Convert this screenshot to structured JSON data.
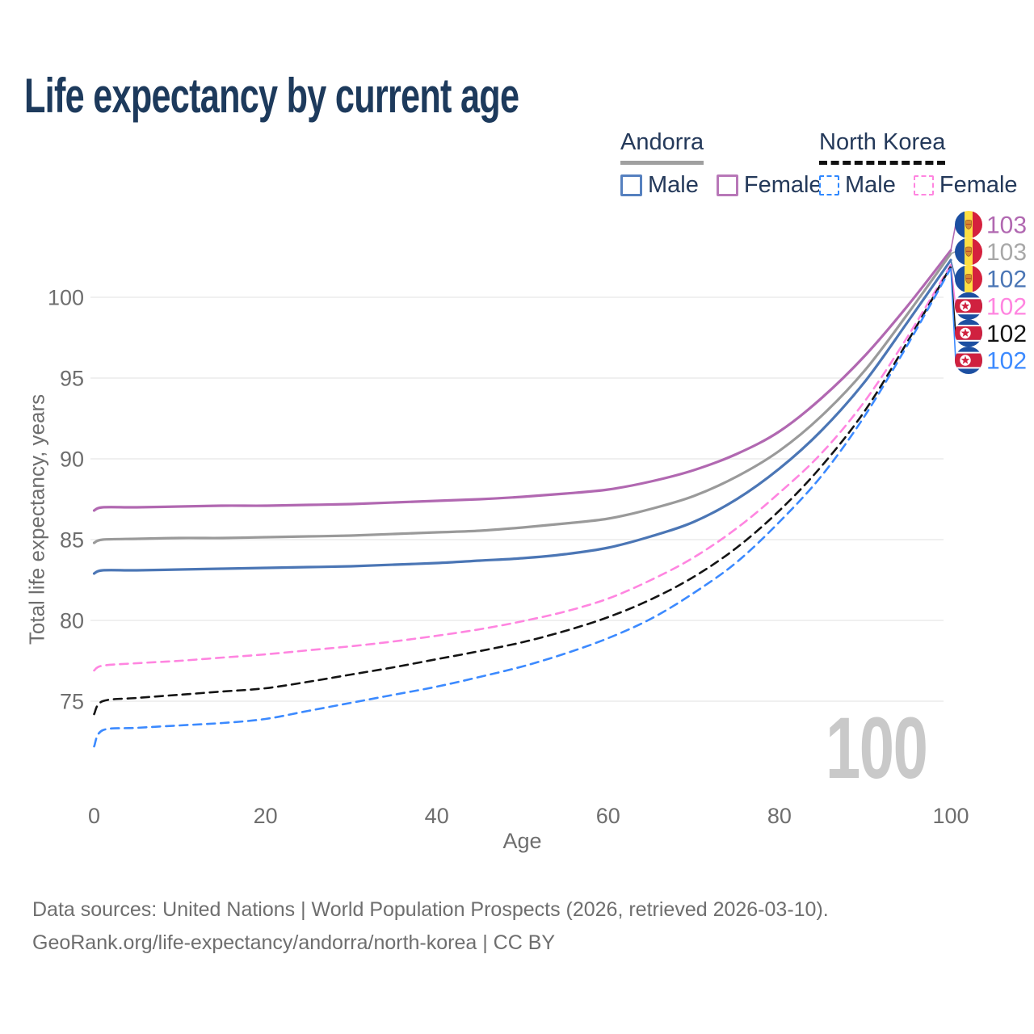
{
  "title": "Life expectancy by current age",
  "watermark": "100",
  "legend": {
    "groups": [
      {
        "label": "Andorra",
        "underline_color": "#a0a0a0",
        "underline_style": "solid",
        "items": [
          {
            "label": "Male",
            "color": "#5580bf",
            "dashed": false
          },
          {
            "label": "Female",
            "color": "#b878b8",
            "dashed": false
          }
        ]
      },
      {
        "label": "North Korea",
        "underline_color": "#111111",
        "underline_style": "dashed",
        "items": [
          {
            "label": "Male",
            "color": "#2f88ff",
            "dashed": true
          },
          {
            "label": "Female",
            "color": "#ff85e0",
            "dashed": true
          }
        ]
      }
    ]
  },
  "chart_data": {
    "type": "line",
    "title": "Life expectancy by current age",
    "xlabel": "Age",
    "ylabel": "Total life expectancy, years",
    "xlim": [
      0,
      100
    ],
    "ylim": [
      71.5,
      103.5
    ],
    "x_ticks": [
      0,
      20,
      40,
      60,
      80,
      100
    ],
    "y_ticks": [
      75,
      80,
      85,
      90,
      95,
      100
    ],
    "grid": "horizontal",
    "legend_position": "top-right",
    "x": [
      0,
      1,
      5,
      10,
      15,
      20,
      25,
      30,
      35,
      40,
      45,
      50,
      55,
      60,
      65,
      70,
      75,
      80,
      85,
      90,
      95,
      100
    ],
    "series": [
      {
        "name": "Andorra Female",
        "country": "Andorra",
        "sex": "Female",
        "color": "#b168b1",
        "dashed": false,
        "flag": "andorra",
        "end_label": "103",
        "end_label_color": "#b168b1",
        "values": [
          86.8,
          87.0,
          87.0,
          87.05,
          87.1,
          87.1,
          87.15,
          87.2,
          87.3,
          87.4,
          87.5,
          87.65,
          87.85,
          88.1,
          88.6,
          89.3,
          90.3,
          91.7,
          93.8,
          96.4,
          99.5,
          102.9
        ]
      },
      {
        "name": "Andorra Both sexes",
        "country": "Andorra",
        "sex": "Both",
        "color": "#9a9a9a",
        "dashed": false,
        "flag": "andorra",
        "end_label": "103",
        "end_label_color": "#a8a8a8",
        "values": [
          84.8,
          85.0,
          85.05,
          85.1,
          85.1,
          85.15,
          85.2,
          85.25,
          85.35,
          85.45,
          85.55,
          85.75,
          86.0,
          86.3,
          86.9,
          87.7,
          88.9,
          90.5,
          92.7,
          95.5,
          99.0,
          102.7
        ]
      },
      {
        "name": "Andorra Male",
        "country": "Andorra",
        "sex": "Male",
        "color": "#4b76b5",
        "dashed": false,
        "flag": "andorra",
        "end_label": "102",
        "end_label_color": "#4b76b5",
        "values": [
          82.9,
          83.1,
          83.1,
          83.15,
          83.2,
          83.25,
          83.3,
          83.35,
          83.45,
          83.55,
          83.7,
          83.85,
          84.1,
          84.5,
          85.2,
          86.1,
          87.5,
          89.4,
          91.8,
          94.8,
          98.5,
          102.3
        ]
      },
      {
        "name": "North Korea Female",
        "country": "North Korea",
        "sex": "Female",
        "color": "#ff85e0",
        "dashed": true,
        "flag": "north-korea",
        "end_label": "102",
        "end_label_color": "#ff85e0",
        "values": [
          76.9,
          77.2,
          77.35,
          77.5,
          77.7,
          77.9,
          78.15,
          78.4,
          78.7,
          79.05,
          79.45,
          79.95,
          80.55,
          81.35,
          82.5,
          83.9,
          85.7,
          87.9,
          90.4,
          93.6,
          97.6,
          102.0
        ]
      },
      {
        "name": "North Korea Both sexes",
        "country": "North Korea",
        "sex": "Both",
        "color": "#141414",
        "dashed": true,
        "flag": "north-korea",
        "end_label": "102",
        "end_label_color": "#141414",
        "values": [
          74.2,
          75.0,
          75.2,
          75.4,
          75.6,
          75.8,
          76.2,
          76.65,
          77.1,
          77.6,
          78.1,
          78.65,
          79.35,
          80.2,
          81.3,
          82.7,
          84.5,
          86.8,
          89.6,
          93.0,
          97.3,
          101.9
        ]
      },
      {
        "name": "North Korea Male",
        "country": "North Korea",
        "sex": "Male",
        "color": "#3c8aff",
        "dashed": true,
        "flag": "north-korea",
        "end_label": "102",
        "end_label_color": "#3c8aff",
        "values": [
          72.2,
          73.2,
          73.35,
          73.5,
          73.65,
          73.9,
          74.4,
          74.9,
          75.4,
          75.9,
          76.5,
          77.15,
          77.95,
          78.9,
          80.1,
          81.7,
          83.6,
          86.1,
          89.0,
          92.7,
          97.1,
          101.8
        ]
      }
    ]
  },
  "footer": {
    "line1": "Data sources: United Nations | World Population Prospects (2026, retrieved 2026-03-10).",
    "line2": "GeoRank.org/life-expectancy/andorra/north-korea | CC BY"
  },
  "colors": {
    "title": "#1d3a5c",
    "axis_text": "#6e6e6e",
    "gridline": "#ececec",
    "watermark": "#c9c9c9"
  }
}
